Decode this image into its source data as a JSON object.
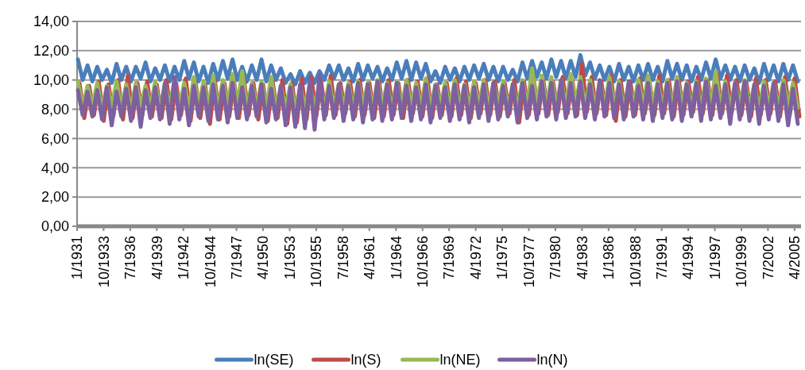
{
  "chart_data": {
    "type": "line",
    "x": [
      "1931-02",
      "1931-08",
      "1932-02",
      "1932-08",
      "1933-02",
      "1933-08",
      "1934-02",
      "1934-08",
      "1935-02",
      "1935-08",
      "1936-02",
      "1936-08",
      "1937-02",
      "1937-08",
      "1938-02",
      "1938-08",
      "1939-02",
      "1939-08",
      "1940-02",
      "1940-08",
      "1941-02",
      "1941-08",
      "1942-02",
      "1942-08",
      "1943-02",
      "1943-08",
      "1944-02",
      "1944-08",
      "1945-02",
      "1945-08",
      "1946-02",
      "1946-08",
      "1947-02",
      "1947-08",
      "1948-02",
      "1948-08",
      "1949-02",
      "1949-08",
      "1950-02",
      "1950-08",
      "1951-02",
      "1951-08",
      "1952-02",
      "1952-08",
      "1953-02",
      "1953-08",
      "1954-02",
      "1954-08",
      "1955-02",
      "1955-08",
      "1956-02",
      "1956-08",
      "1957-02",
      "1957-08",
      "1958-02",
      "1958-08",
      "1959-02",
      "1959-08",
      "1960-02",
      "1960-08",
      "1961-02",
      "1961-08",
      "1962-02",
      "1962-08",
      "1963-02",
      "1963-08",
      "1964-02",
      "1964-08",
      "1965-02",
      "1965-08",
      "1966-02",
      "1966-08",
      "1967-02",
      "1967-08",
      "1968-02",
      "1968-08",
      "1969-02",
      "1969-08",
      "1970-02",
      "1970-08",
      "1971-02",
      "1971-08",
      "1972-02",
      "1972-08",
      "1973-02",
      "1973-08",
      "1974-02",
      "1974-08",
      "1975-02",
      "1975-08",
      "1976-02",
      "1976-08",
      "1977-02",
      "1977-08",
      "1978-02",
      "1978-08",
      "1979-02",
      "1979-08",
      "1980-02",
      "1980-08",
      "1981-02",
      "1981-08",
      "1982-02",
      "1982-08",
      "1983-02",
      "1983-08",
      "1984-02",
      "1984-08",
      "1985-02",
      "1985-08",
      "1986-02",
      "1986-08",
      "1987-02",
      "1987-08",
      "1988-02",
      "1988-08",
      "1989-02",
      "1989-08",
      "1990-02",
      "1990-08",
      "1991-02",
      "1991-08",
      "1992-02",
      "1992-08",
      "1993-02",
      "1993-08",
      "1994-02",
      "1994-08",
      "1995-02",
      "1995-08",
      "1996-02",
      "1996-08",
      "1997-02",
      "1997-08",
      "1998-02",
      "1998-08",
      "1999-02",
      "1999-08",
      "2000-02",
      "2000-08",
      "2001-02",
      "2001-08",
      "2002-02",
      "2002-08",
      "2003-02",
      "2003-08",
      "2004-02",
      "2004-08",
      "2005-02",
      "2005-08"
    ],
    "series": [
      {
        "name": "ln(SE)",
        "color": "#4a7ebb",
        "values": [
          11.4,
          10.0,
          11.0,
          9.9,
          10.9,
          10.0,
          10.7,
          9.8,
          11.1,
          10.0,
          10.9,
          9.9,
          10.9,
          10.1,
          11.2,
          9.9,
          10.8,
          10.0,
          11.0,
          9.9,
          10.9,
          10.0,
          11.3,
          10.1,
          11.2,
          9.9,
          10.9,
          9.8,
          11.1,
          10.0,
          11.3,
          10.1,
          11.4,
          10.0,
          10.9,
          9.9,
          11.0,
          10.0,
          11.4,
          9.9,
          11.0,
          10.0,
          10.8,
          9.8,
          10.4,
          9.7,
          10.6,
          9.8,
          10.5,
          9.8,
          10.6,
          10.0,
          11.0,
          10.1,
          11.0,
          10.0,
          10.8,
          9.9,
          11.1,
          10.0,
          11.0,
          10.1,
          10.9,
          9.9,
          10.8,
          10.0,
          11.2,
          10.1,
          11.3,
          10.0,
          11.2,
          10.1,
          11.1,
          9.9,
          10.6,
          9.8,
          10.9,
          10.0,
          10.8,
          9.9,
          10.9,
          10.0,
          11.0,
          10.1,
          11.1,
          10.0,
          10.9,
          9.9,
          10.9,
          10.0,
          10.7,
          9.9,
          11.2,
          10.1,
          11.3,
          10.2,
          11.2,
          10.1,
          11.4,
          10.2,
          11.3,
          10.1,
          11.3,
          10.2,
          11.7,
          10.3,
          11.2,
          10.1,
          11.0,
          10.0,
          10.9,
          9.9,
          11.1,
          10.0,
          10.9,
          9.9,
          11.0,
          10.0,
          11.1,
          10.0,
          10.9,
          9.9,
          11.3,
          10.1,
          11.1,
          10.0,
          11.0,
          9.9,
          10.9,
          10.0,
          11.2,
          10.1,
          11.4,
          10.1,
          11.0,
          10.0,
          10.9,
          9.9,
          11.0,
          10.0,
          10.8,
          9.8,
          11.1,
          10.0,
          11.0,
          9.9,
          11.1,
          10.0,
          11.0,
          9.9
        ]
      },
      {
        "name": "ln(S)",
        "color": "#be4b48",
        "x": [
          "1931-04",
          "1931-10",
          "1932-04",
          "1932-10",
          "1933-04",
          "1933-10",
          "1934-04",
          "1934-10",
          "1935-04",
          "1935-10",
          "1936-04",
          "1936-10",
          "1937-04",
          "1937-10",
          "1938-04",
          "1938-10",
          "1939-04",
          "1939-10",
          "1940-04",
          "1940-10",
          "1941-04",
          "1941-10",
          "1942-04",
          "1942-10",
          "1943-04",
          "1943-10",
          "1944-04",
          "1944-10",
          "1945-04",
          "1945-10",
          "1946-04",
          "1946-10",
          "1947-04",
          "1947-10",
          "1948-04",
          "1948-10",
          "1949-04",
          "1949-10",
          "1950-04",
          "1950-10",
          "1951-04",
          "1951-10",
          "1952-04",
          "1952-10",
          "1953-04",
          "1953-10",
          "1954-04",
          "1954-10",
          "1955-04",
          "1955-10",
          "1956-04",
          "1956-10",
          "1957-04",
          "1957-10",
          "1958-04",
          "1958-10",
          "1959-04",
          "1959-10",
          "1960-04",
          "1960-10",
          "1961-04",
          "1961-10",
          "1962-04",
          "1962-10",
          "1963-04",
          "1963-10",
          "1964-04",
          "1964-10",
          "1965-04",
          "1965-10",
          "1966-04",
          "1966-10",
          "1967-04",
          "1967-10",
          "1968-04",
          "1968-10",
          "1969-04",
          "1969-10",
          "1970-04",
          "1970-10",
          "1971-04",
          "1971-10",
          "1972-04",
          "1972-10",
          "1973-04",
          "1973-10",
          "1974-04",
          "1974-10",
          "1975-04",
          "1975-10",
          "1976-04",
          "1976-10",
          "1977-04",
          "1977-10",
          "1978-04",
          "1978-10",
          "1979-04",
          "1979-10",
          "1980-04",
          "1980-10",
          "1981-04",
          "1981-10",
          "1982-04",
          "1982-10",
          "1983-04",
          "1983-10",
          "1984-04",
          "1984-10",
          "1985-04",
          "1985-10",
          "1986-04",
          "1986-10",
          "1987-04",
          "1987-10",
          "1988-04",
          "1988-10",
          "1989-04",
          "1989-10",
          "1990-04",
          "1990-10",
          "1991-04",
          "1991-10",
          "1992-04",
          "1992-10",
          "1993-04",
          "1993-10",
          "1994-04",
          "1994-10",
          "1995-04",
          "1995-10",
          "1996-04",
          "1996-10",
          "1997-04",
          "1997-10",
          "1998-04",
          "1998-10",
          "1999-04",
          "1999-10",
          "2000-04",
          "2000-10",
          "2001-04",
          "2001-10",
          "2002-04",
          "2002-10",
          "2003-04",
          "2003-10",
          "2004-04",
          "2004-10",
          "2005-04",
          "2005-10"
        ],
        "values": [
          9.8,
          7.4,
          9.6,
          7.6,
          9.9,
          7.2,
          9.7,
          7.5,
          10.0,
          7.3,
          10.3,
          7.4,
          9.8,
          7.6,
          9.9,
          7.5,
          9.7,
          7.4,
          10.0,
          7.3,
          9.8,
          7.6,
          10.1,
          7.2,
          9.9,
          7.4,
          9.7,
          7.0,
          10.0,
          7.3,
          9.8,
          7.5,
          9.9,
          7.4,
          10.1,
          7.6,
          9.8,
          7.3,
          9.7,
          7.2,
          9.9,
          7.4,
          10.0,
          7.0,
          9.8,
          7.1,
          10.1,
          7.3,
          10.2,
          7.5,
          9.9,
          7.6,
          10.3,
          7.6,
          9.8,
          7.7,
          9.9,
          7.5,
          10.0,
          7.6,
          9.8,
          7.4,
          9.9,
          7.5,
          10.0,
          7.6,
          9.8,
          7.4,
          10.0,
          7.7,
          9.9,
          7.5,
          10.1,
          7.4,
          9.7,
          7.6,
          9.8,
          7.5,
          10.1,
          7.6,
          9.9,
          7.4,
          9.8,
          7.7,
          10.0,
          7.6,
          9.9,
          7.5,
          9.8,
          7.7,
          10.0,
          7.1,
          9.9,
          7.6,
          10.1,
          7.7,
          10.0,
          7.6,
          9.9,
          7.8,
          10.2,
          7.7,
          10.0,
          7.6,
          11.1,
          7.8,
          10.2,
          7.7,
          9.9,
          7.6,
          10.3,
          7.2,
          10.0,
          7.5,
          9.9,
          7.6,
          10.1,
          7.7,
          9.8,
          7.6,
          10.3,
          7.7,
          10.0,
          7.5,
          10.1,
          7.6,
          9.9,
          7.8,
          10.2,
          7.7,
          10.0,
          7.6,
          10.4,
          7.7,
          10.3,
          7.8,
          10.0,
          7.6,
          9.9,
          7.5,
          10.1,
          7.6,
          10.0,
          7.7,
          9.9,
          7.5,
          10.2,
          7.6,
          10.1,
          7.5
        ]
      },
      {
        "name": "ln(NE)",
        "color": "#98b954",
        "values": [
          9.9,
          8.1,
          9.6,
          8.2,
          9.8,
          8.0,
          9.6,
          8.2,
          9.9,
          8.1,
          9.7,
          8.0,
          9.8,
          8.2,
          9.6,
          8.1,
          9.9,
          8.0,
          9.7,
          8.2,
          10.0,
          8.1,
          9.8,
          8.0,
          10.2,
          8.2,
          9.9,
          8.1,
          10.3,
          8.0,
          10.0,
          8.2,
          10.4,
          8.1,
          10.6,
          8.0,
          9.8,
          8.2,
          9.9,
          8.1,
          10.2,
          8.0,
          9.6,
          8.1,
          9.7,
          8.0,
          9.5,
          8.2,
          9.6,
          8.1,
          9.8,
          8.0,
          9.9,
          8.2,
          9.7,
          8.1,
          9.8,
          8.0,
          9.9,
          8.2,
          9.8,
          8.1,
          10.0,
          8.2,
          9.8,
          8.0,
          9.9,
          8.1,
          10.0,
          8.2,
          9.8,
          8.1,
          10.1,
          8.0,
          9.7,
          8.2,
          9.8,
          8.1,
          10.0,
          8.0,
          9.7,
          8.1,
          9.9,
          8.2,
          10.0,
          8.1,
          9.8,
          8.2,
          9.9,
          8.1,
          9.7,
          8.0,
          10.0,
          8.2,
          10.8,
          8.3,
          10.3,
          8.2,
          10.2,
          8.1,
          10.0,
          8.2,
          10.4,
          8.3,
          10.2,
          8.2,
          10.0,
          8.1,
          9.9,
          8.2,
          10.2,
          8.1,
          9.9,
          8.0,
          9.8,
          8.2,
          10.0,
          8.1,
          10.3,
          8.2,
          9.9,
          8.1,
          10.0,
          8.0,
          10.2,
          8.2,
          9.8,
          8.1,
          9.9,
          8.0,
          10.1,
          8.2,
          10.6,
          8.1,
          9.9,
          8.0,
          9.8,
          8.2,
          10.0,
          8.1,
          9.7,
          8.0,
          9.9,
          8.2,
          9.8,
          8.1,
          10.0,
          8.2,
          9.8,
          8.1
        ]
      },
      {
        "name": "ln(N)",
        "color": "#7d60a0",
        "values": [
          9.3,
          7.6,
          9.2,
          7.5,
          9.3,
          7.3,
          9.5,
          6.9,
          9.2,
          7.5,
          9.4,
          7.2,
          9.5,
          6.8,
          9.3,
          7.4,
          9.5,
          7.3,
          9.8,
          7.0,
          10.2,
          7.3,
          9.4,
          6.9,
          9.6,
          7.5,
          9.5,
          7.2,
          9.7,
          7.3,
          9.6,
          7.1,
          9.8,
          7.4,
          9.5,
          7.3,
          9.6,
          7.5,
          9.7,
          7.1,
          9.4,
          7.3,
          9.6,
          6.9,
          9.5,
          6.8,
          9.7,
          6.7,
          10.0,
          6.6,
          10.3,
          7.3,
          9.6,
          7.4,
          9.7,
          7.2,
          9.6,
          7.3,
          9.8,
          7.1,
          9.7,
          7.3,
          9.9,
          7.2,
          9.7,
          7.3,
          9.8,
          7.4,
          9.6,
          7.2,
          9.5,
          7.3,
          9.7,
          7.1,
          9.6,
          7.4,
          9.5,
          7.2,
          9.7,
          7.3,
          9.6,
          7.1,
          9.5,
          7.4,
          9.7,
          7.2,
          9.8,
          7.3,
          9.6,
          7.5,
          9.7,
          7.1,
          9.8,
          7.4,
          9.6,
          7.3,
          9.9,
          7.5,
          9.8,
          7.3,
          10.0,
          7.4,
          9.8,
          7.5,
          9.9,
          7.4,
          9.7,
          7.3,
          10.0,
          7.5,
          9.8,
          7.4,
          9.7,
          7.3,
          9.9,
          7.5,
          9.6,
          7.3,
          9.8,
          7.2,
          9.7,
          7.4,
          9.8,
          7.3,
          9.9,
          7.2,
          9.7,
          7.5,
          9.8,
          7.2,
          9.9,
          7.3,
          9.6,
          7.4,
          9.7,
          7.0,
          9.8,
          7.3,
          9.9,
          7.2,
          9.7,
          7.0,
          9.6,
          7.3,
          9.8,
          7.2,
          9.7,
          6.9,
          9.4,
          7.0
        ]
      }
    ],
    "xlim": [
      "1931-01",
      "2005-12"
    ],
    "xticks": [
      {
        "value": "1931-01",
        "label": "1/1931"
      },
      {
        "value": "1933-10",
        "label": "10/1933"
      },
      {
        "value": "1936-07",
        "label": "7/1936"
      },
      {
        "value": "1939-04",
        "label": "4/1939"
      },
      {
        "value": "1942-01",
        "label": "1/1942"
      },
      {
        "value": "1944-10",
        "label": "10/1944"
      },
      {
        "value": "1947-07",
        "label": "7/1947"
      },
      {
        "value": "1950-04",
        "label": "4/1950"
      },
      {
        "value": "1953-01",
        "label": "1/1953"
      },
      {
        "value": "1955-10",
        "label": "10/1955"
      },
      {
        "value": "1958-07",
        "label": "7/1958"
      },
      {
        "value": "1961-04",
        "label": "4/1961"
      },
      {
        "value": "1964-01",
        "label": "1/1964"
      },
      {
        "value": "1966-10",
        "label": "10/1966"
      },
      {
        "value": "1969-07",
        "label": "7/1969"
      },
      {
        "value": "1972-04",
        "label": "4/1972"
      },
      {
        "value": "1975-01",
        "label": "1/1975"
      },
      {
        "value": "1977-10",
        "label": "10/1977"
      },
      {
        "value": "1980-07",
        "label": "7/1980"
      },
      {
        "value": "1983-04",
        "label": "4/1983"
      },
      {
        "value": "1986-01",
        "label": "1/1986"
      },
      {
        "value": "1988-10",
        "label": "10/1988"
      },
      {
        "value": "1991-07",
        "label": "7/1991"
      },
      {
        "value": "1994-04",
        "label": "4/1994"
      },
      {
        "value": "1997-01",
        "label": "1/1997"
      },
      {
        "value": "1999-10",
        "label": "10/1999"
      },
      {
        "value": "2002-07",
        "label": "7/2002"
      },
      {
        "value": "2005-04",
        "label": "4/2005"
      }
    ],
    "ylim": [
      0,
      14
    ],
    "yticks": [
      {
        "value": 0,
        "label": "0,00"
      },
      {
        "value": 2,
        "label": "2,00"
      },
      {
        "value": 4,
        "label": "4,00"
      },
      {
        "value": 6,
        "label": "6,00"
      },
      {
        "value": 8,
        "label": "8,00"
      },
      {
        "value": 10,
        "label": "10,00"
      },
      {
        "value": 12,
        "label": "12,00"
      },
      {
        "value": 14,
        "label": "14,00"
      }
    ],
    "grid": "y",
    "legend": "bottom"
  }
}
